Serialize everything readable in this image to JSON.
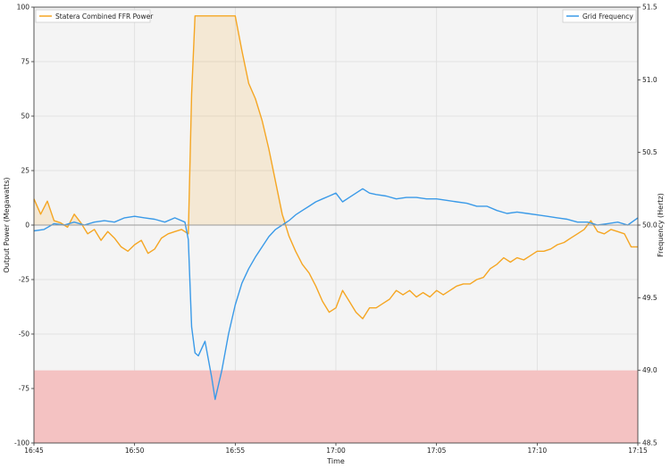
{
  "chart_data": {
    "type": "line",
    "xlabel": "Time",
    "ylabel_left": "Output Power (Megawatts)",
    "ylabel_right": "Frequency (Hertz)",
    "x_range": [
      "16:45",
      "17:15"
    ],
    "ylim_left": [
      -100,
      100
    ],
    "ylim_right": [
      48.5,
      51.5
    ],
    "x_ticks": [
      "16:45",
      "16:50",
      "16:55",
      "17:00",
      "17:05",
      "17:10",
      "17:15"
    ],
    "y_ticks_left": [
      "-100",
      "-75",
      "-50",
      "-25",
      "0",
      "25",
      "50",
      "75",
      "100"
    ],
    "y_ticks_right": [
      "48.5",
      "49.0",
      "49.5",
      "50.0",
      "50.5",
      "51.0",
      "51.5"
    ],
    "grid": true,
    "shaded_region": {
      "y_from": 48.5,
      "y_to": 49.0,
      "axis": "right",
      "color": "#f4c2c2"
    },
    "baseline": 0,
    "series": [
      {
        "name": "Statera Combined FFR Power",
        "axis": "left",
        "color": "#f5a623",
        "legend": "top-left",
        "fill_between_zero": "positive",
        "points": [
          [
            "16:45:00",
            12
          ],
          [
            "16:45:20",
            5
          ],
          [
            "16:45:40",
            11
          ],
          [
            "16:46:00",
            2
          ],
          [
            "16:46:20",
            1
          ],
          [
            "16:46:40",
            -1
          ],
          [
            "16:47:00",
            5
          ],
          [
            "16:47:20",
            1
          ],
          [
            "16:47:40",
            -4
          ],
          [
            "16:48:00",
            -2
          ],
          [
            "16:48:20",
            -7
          ],
          [
            "16:48:40",
            -3
          ],
          [
            "16:49:00",
            -6
          ],
          [
            "16:49:20",
            -10
          ],
          [
            "16:49:40",
            -12
          ],
          [
            "16:50:00",
            -9
          ],
          [
            "16:50:20",
            -7
          ],
          [
            "16:50:40",
            -13
          ],
          [
            "16:51:00",
            -11
          ],
          [
            "16:51:20",
            -6
          ],
          [
            "16:51:40",
            -4
          ],
          [
            "16:52:00",
            -3
          ],
          [
            "16:52:20",
            -2
          ],
          [
            "16:52:40",
            -4
          ],
          [
            "16:52:50",
            60
          ],
          [
            "16:53:00",
            96
          ],
          [
            "16:53:40",
            96
          ],
          [
            "16:54:20",
            96
          ],
          [
            "16:55:00",
            96
          ],
          [
            "16:55:20",
            80
          ],
          [
            "16:55:40",
            65
          ],
          [
            "16:56:00",
            58
          ],
          [
            "16:56:20",
            48
          ],
          [
            "16:56:40",
            35
          ],
          [
            "16:57:00",
            20
          ],
          [
            "16:57:20",
            5
          ],
          [
            "16:57:40",
            -5
          ],
          [
            "16:58:00",
            -12
          ],
          [
            "16:58:20",
            -18
          ],
          [
            "16:58:40",
            -22
          ],
          [
            "16:59:00",
            -28
          ],
          [
            "16:59:20",
            -35
          ],
          [
            "16:59:40",
            -40
          ],
          [
            "17:00:00",
            -38
          ],
          [
            "17:00:20",
            -30
          ],
          [
            "17:00:40",
            -35
          ],
          [
            "17:01:00",
            -40
          ],
          [
            "17:01:20",
            -43
          ],
          [
            "17:01:40",
            -38
          ],
          [
            "17:02:00",
            -38
          ],
          [
            "17:02:20",
            -36
          ],
          [
            "17:02:40",
            -34
          ],
          [
            "17:03:00",
            -30
          ],
          [
            "17:03:20",
            -32
          ],
          [
            "17:03:40",
            -30
          ],
          [
            "17:04:00",
            -33
          ],
          [
            "17:04:20",
            -31
          ],
          [
            "17:04:40",
            -33
          ],
          [
            "17:05:00",
            -30
          ],
          [
            "17:05:20",
            -32
          ],
          [
            "17:05:40",
            -30
          ],
          [
            "17:06:00",
            -28
          ],
          [
            "17:06:20",
            -27
          ],
          [
            "17:06:40",
            -27
          ],
          [
            "17:07:00",
            -25
          ],
          [
            "17:07:20",
            -24
          ],
          [
            "17:07:40",
            -20
          ],
          [
            "17:08:00",
            -18
          ],
          [
            "17:08:20",
            -15
          ],
          [
            "17:08:40",
            -17
          ],
          [
            "17:09:00",
            -15
          ],
          [
            "17:09:20",
            -16
          ],
          [
            "17:09:40",
            -14
          ],
          [
            "17:10:00",
            -12
          ],
          [
            "17:10:20",
            -12
          ],
          [
            "17:10:40",
            -11
          ],
          [
            "17:11:00",
            -9
          ],
          [
            "17:11:20",
            -8
          ],
          [
            "17:11:40",
            -6
          ],
          [
            "17:12:00",
            -4
          ],
          [
            "17:12:20",
            -2
          ],
          [
            "17:12:40",
            2
          ],
          [
            "17:13:00",
            -3
          ],
          [
            "17:13:20",
            -4
          ],
          [
            "17:13:40",
            -2
          ],
          [
            "17:14:00",
            -3
          ],
          [
            "17:14:20",
            -4
          ],
          [
            "17:14:40",
            -10
          ],
          [
            "17:15:00",
            -10
          ]
        ]
      },
      {
        "name": "Grid Frequency",
        "axis": "right",
        "color": "#3a9ae8",
        "legend": "top-right",
        "points": [
          [
            "16:45:00",
            49.96
          ],
          [
            "16:45:30",
            49.97
          ],
          [
            "16:46:00",
            50.01
          ],
          [
            "16:46:30",
            50.0
          ],
          [
            "16:47:00",
            50.02
          ],
          [
            "16:47:30",
            50.0
          ],
          [
            "16:48:00",
            50.02
          ],
          [
            "16:48:30",
            50.03
          ],
          [
            "16:49:00",
            50.02
          ],
          [
            "16:49:30",
            50.05
          ],
          [
            "16:50:00",
            50.06
          ],
          [
            "16:50:30",
            50.05
          ],
          [
            "16:51:00",
            50.04
          ],
          [
            "16:51:30",
            50.02
          ],
          [
            "16:52:00",
            50.05
          ],
          [
            "16:52:30",
            50.02
          ],
          [
            "16:52:40",
            49.9
          ],
          [
            "16:52:50",
            49.3
          ],
          [
            "16:53:00",
            49.12
          ],
          [
            "16:53:10",
            49.1
          ],
          [
            "16:53:30",
            49.2
          ],
          [
            "16:53:50",
            48.95
          ],
          [
            "16:54:00",
            48.8
          ],
          [
            "16:54:20",
            49.0
          ],
          [
            "16:54:40",
            49.25
          ],
          [
            "16:55:00",
            49.45
          ],
          [
            "16:55:20",
            49.6
          ],
          [
            "16:55:40",
            49.7
          ],
          [
            "16:56:00",
            49.78
          ],
          [
            "16:56:20",
            49.85
          ],
          [
            "16:56:40",
            49.92
          ],
          [
            "16:57:00",
            49.97
          ],
          [
            "16:57:20",
            50.0
          ],
          [
            "16:57:40",
            50.03
          ],
          [
            "16:58:00",
            50.07
          ],
          [
            "16:58:20",
            50.1
          ],
          [
            "16:58:40",
            50.13
          ],
          [
            "16:59:00",
            50.16
          ],
          [
            "16:59:20",
            50.18
          ],
          [
            "16:59:40",
            50.2
          ],
          [
            "17:00:00",
            50.22
          ],
          [
            "17:00:20",
            50.16
          ],
          [
            "17:00:40",
            50.19
          ],
          [
            "17:01:00",
            50.22
          ],
          [
            "17:01:20",
            50.25
          ],
          [
            "17:01:40",
            50.22
          ],
          [
            "17:02:00",
            50.21
          ],
          [
            "17:02:30",
            50.2
          ],
          [
            "17:03:00",
            50.18
          ],
          [
            "17:03:30",
            50.19
          ],
          [
            "17:04:00",
            50.19
          ],
          [
            "17:04:30",
            50.18
          ],
          [
            "17:05:00",
            50.18
          ],
          [
            "17:05:30",
            50.17
          ],
          [
            "17:06:00",
            50.16
          ],
          [
            "17:06:30",
            50.15
          ],
          [
            "17:07:00",
            50.13
          ],
          [
            "17:07:30",
            50.13
          ],
          [
            "17:08:00",
            50.1
          ],
          [
            "17:08:30",
            50.08
          ],
          [
            "17:09:00",
            50.09
          ],
          [
            "17:09:30",
            50.08
          ],
          [
            "17:10:00",
            50.07
          ],
          [
            "17:10:30",
            50.06
          ],
          [
            "17:11:00",
            50.05
          ],
          [
            "17:11:30",
            50.04
          ],
          [
            "17:12:00",
            50.02
          ],
          [
            "17:12:30",
            50.02
          ],
          [
            "17:13:00",
            50.0
          ],
          [
            "17:13:30",
            50.01
          ],
          [
            "17:14:00",
            50.02
          ],
          [
            "17:14:30",
            50.0
          ],
          [
            "17:15:00",
            50.05
          ]
        ]
      }
    ]
  }
}
